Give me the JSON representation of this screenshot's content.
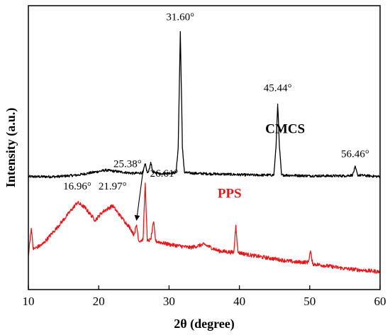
{
  "chart_data": {
    "type": "line",
    "xlabel": "2θ (degree)",
    "ylabel": "Intensity (a.u.)",
    "xlim": [
      10,
      60
    ],
    "xticks": [
      10,
      20,
      30,
      40,
      50,
      60
    ],
    "yticks_shown": false,
    "grid": false,
    "series": [
      {
        "name": "CMCS",
        "color": "#000000",
        "baseline": 0.62,
        "noise": 0.008,
        "points": [
          [
            10,
            0.62
          ],
          [
            14,
            0.62
          ],
          [
            17,
            0.63
          ],
          [
            19,
            0.645
          ],
          [
            21,
            0.66
          ],
          [
            23,
            0.65
          ],
          [
            25,
            0.64
          ],
          [
            26.3,
            0.645
          ],
          [
            26.6,
            0.7
          ],
          [
            26.9,
            0.645
          ],
          [
            27.1,
            0.65
          ],
          [
            27.4,
            0.71
          ],
          [
            27.7,
            0.645
          ],
          [
            29,
            0.64
          ],
          [
            31.0,
            0.645
          ],
          [
            31.3,
            0.8
          ],
          [
            31.6,
            1.52
          ],
          [
            31.9,
            0.8
          ],
          [
            32.2,
            0.645
          ],
          [
            34,
            0.64
          ],
          [
            38,
            0.635
          ],
          [
            42,
            0.63
          ],
          [
            44.9,
            0.63
          ],
          [
            45.2,
            0.8
          ],
          [
            45.44,
            1.07
          ],
          [
            45.7,
            0.8
          ],
          [
            46.0,
            0.63
          ],
          [
            50,
            0.625
          ],
          [
            55,
            0.625
          ],
          [
            56.1,
            0.63
          ],
          [
            56.46,
            0.68
          ],
          [
            56.8,
            0.63
          ],
          [
            60,
            0.62
          ]
        ]
      },
      {
        "name": "PPS",
        "color": "#e8161a",
        "baseline": 0.0,
        "noise": 0.012,
        "points": [
          [
            10,
            0.13
          ],
          [
            10.4,
            0.3
          ],
          [
            10.7,
            0.17
          ],
          [
            12,
            0.2
          ],
          [
            14,
            0.3
          ],
          [
            15.5,
            0.38
          ],
          [
            16.96,
            0.46
          ],
          [
            18,
            0.43
          ],
          [
            19.5,
            0.35
          ],
          [
            20.5,
            0.4
          ],
          [
            21.97,
            0.44
          ],
          [
            23,
            0.38
          ],
          [
            24.5,
            0.3
          ],
          [
            25.0,
            0.26
          ],
          [
            25.38,
            0.32
          ],
          [
            25.7,
            0.22
          ],
          [
            26.3,
            0.23
          ],
          [
            26.61,
            0.58
          ],
          [
            26.9,
            0.22
          ],
          [
            27.4,
            0.23
          ],
          [
            27.8,
            0.34
          ],
          [
            28.1,
            0.22
          ],
          [
            30,
            0.2
          ],
          [
            33,
            0.18
          ],
          [
            35,
            0.2
          ],
          [
            37,
            0.16
          ],
          [
            39.2,
            0.15
          ],
          [
            39.5,
            0.32
          ],
          [
            39.8,
            0.15
          ],
          [
            42,
            0.13
          ],
          [
            45,
            0.11
          ],
          [
            48,
            0.09
          ],
          [
            49.8,
            0.09
          ],
          [
            50.1,
            0.16
          ],
          [
            50.4,
            0.08
          ],
          [
            55,
            0.05
          ],
          [
            60,
            0.03
          ]
        ]
      }
    ],
    "series_labels": [
      {
        "text": "CMCS",
        "x": 46.5,
        "y": 0.89,
        "color": "#000000"
      },
      {
        "text": "PPS",
        "x": 38.6,
        "y": 0.49,
        "color": "#e8161a"
      }
    ],
    "annotations": [
      {
        "text": "31.60°",
        "x": 31.6,
        "y": 1.59
      },
      {
        "text": "45.44°",
        "x": 45.44,
        "y": 1.15
      },
      {
        "text": "56.46°",
        "x": 56.46,
        "y": 0.74
      },
      {
        "text": "16.96°",
        "x": 16.96,
        "y": 0.54
      },
      {
        "text": "21.97°",
        "x": 21.97,
        "y": 0.54
      },
      {
        "text": "25.38°",
        "x": 24.1,
        "y": 0.68,
        "arrow_to": [
          25.38,
          0.35
        ]
      },
      {
        "text": "26.61°",
        "x": 29.3,
        "y": 0.62
      }
    ],
    "ylim": [
      -0.08,
      1.68
    ]
  }
}
